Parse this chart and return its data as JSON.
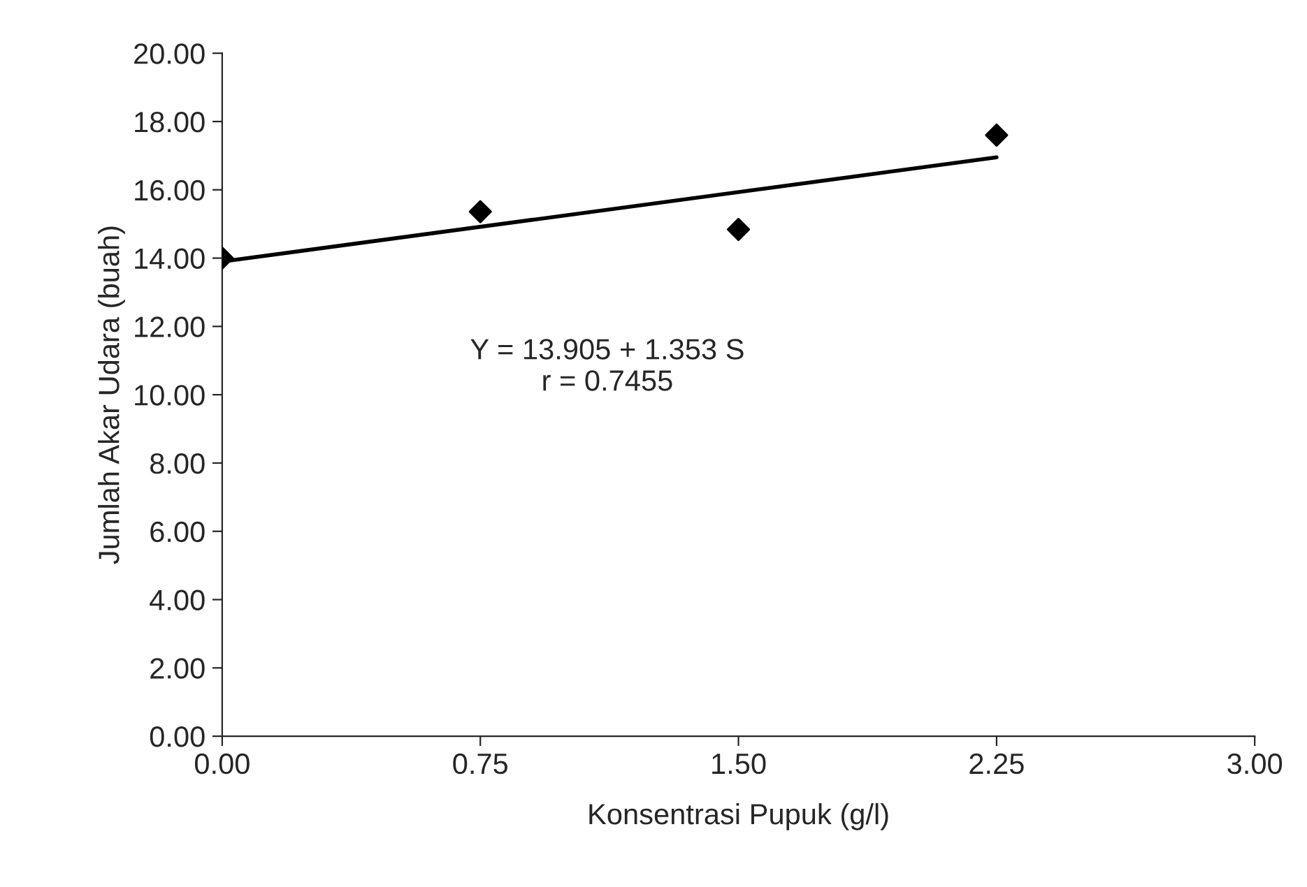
{
  "chart_data": {
    "type": "scatter",
    "xlabel": "Konsentrasi Pupuk (g/l)",
    "ylabel": "Jumlah Akar Udara (buah)",
    "series": [
      {
        "color": "#000000",
        "marker": "diamond",
        "x": [
          0,
          0.75,
          1.5,
          2.25
        ],
        "values": [
          14.0,
          15.36,
          14.84,
          17.6
        ]
      },
      {
        "type": "line",
        "color": "#000000",
        "marker": "none",
        "line_style": "solid",
        "x": [
          0,
          2.25
        ],
        "values": [
          13.9,
          16.95
        ]
      }
    ],
    "annotations": [
      "Y = 13.905 + 1.353 S\nr = 0.7455"
    ],
    "xlim": [
      0,
      3
    ],
    "xticks": [
      {
        "value": 0,
        "label": "0.00"
      },
      {
        "value": 0.75,
        "label": "0.75"
      },
      {
        "value": 1.5,
        "label": "1.50"
      },
      {
        "value": 2.25,
        "label": "2.25"
      },
      {
        "value": 3,
        "label": "3.00"
      }
    ],
    "ylim": [
      0,
      20
    ],
    "yticks": [
      {
        "value": 0,
        "label": "0.00"
      },
      {
        "value": 2,
        "label": "2.00"
      },
      {
        "value": 4,
        "label": "4.00"
      },
      {
        "value": 6,
        "label": "6.00"
      },
      {
        "value": 8,
        "label": "8.00"
      },
      {
        "value": 10,
        "label": "10.00"
      },
      {
        "value": 12,
        "label": "12.00"
      },
      {
        "value": 14,
        "label": "14.00"
      },
      {
        "value": 16,
        "label": "16.00"
      },
      {
        "value": 18,
        "label": "18.00"
      },
      {
        "value": 20,
        "label": "20.00"
      }
    ],
    "grid": false,
    "legend": false
  }
}
